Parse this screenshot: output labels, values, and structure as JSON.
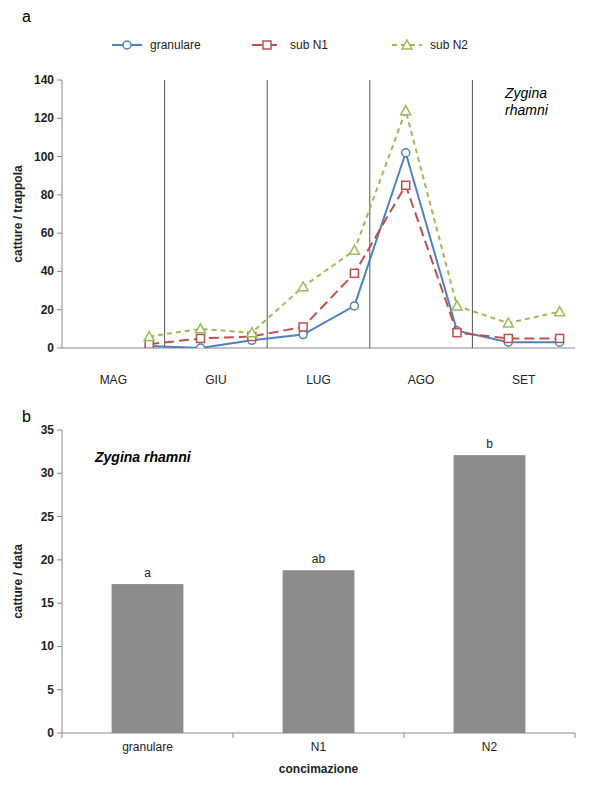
{
  "chart_data": [
    {
      "panel": "a",
      "type": "line",
      "title": "Zygina rhamni",
      "y_label": "catture / trappola",
      "categories": [
        null,
        null,
        null,
        null,
        null,
        null,
        null,
        null,
        null,
        null
      ],
      "x_groups": [
        {
          "label": "MAG",
          "span": 2
        },
        {
          "label": "GIU",
          "span": 2
        },
        {
          "label": "LUG",
          "span": 2
        },
        {
          "label": "AGO",
          "span": 2
        },
        {
          "label": "SET",
          "span": 2
        }
      ],
      "series": [
        {
          "name": "granulare",
          "color": "#4f81bd",
          "marker": "circle",
          "line_style": "solid",
          "values": [
            null,
            1,
            0,
            4,
            7,
            22,
            102,
            9,
            3,
            3
          ]
        },
        {
          "name": "sub  N1",
          "color": "#c0504d",
          "marker": "square",
          "line_style": "longdash",
          "values": [
            null,
            2,
            5,
            6,
            11,
            39,
            85,
            8,
            5,
            5
          ]
        },
        {
          "name": "sub N2",
          "color": "#9bbb59",
          "marker": "triangle",
          "line_style": "dash",
          "values": [
            null,
            6,
            10,
            8,
            32,
            51,
            124,
            22,
            13,
            19
          ]
        }
      ],
      "ylim": [
        0,
        140
      ],
      "yticks": [
        0,
        20,
        40,
        60,
        80,
        100,
        120,
        140
      ],
      "grid": false,
      "legend": "top"
    },
    {
      "panel": "b",
      "type": "bar",
      "title": "Zygina rhamni",
      "x_label": "concimazione",
      "y_label": "catture / data",
      "categories": [
        "granulare",
        "N1",
        "N2"
      ],
      "values": [
        17.2,
        18.8,
        32.1
      ],
      "annotations": [
        "a",
        "ab",
        "b"
      ],
      "color": "#8c8c8c",
      "ylim": [
        0,
        35
      ],
      "yticks": [
        0,
        5,
        10,
        15,
        20,
        25,
        30,
        35
      ],
      "grid": false
    }
  ]
}
